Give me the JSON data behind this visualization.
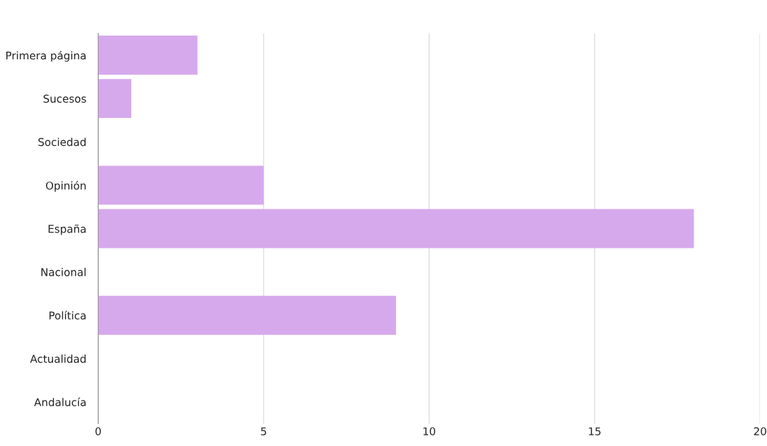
{
  "chart_data": {
    "type": "bar",
    "orientation": "horizontal",
    "categories": [
      "Primera página",
      "Sucesos",
      "Sociedad",
      "Opinión",
      "España",
      "Nacional",
      "Política",
      "Actualidad",
      "Andalucía"
    ],
    "values": [
      3,
      1,
      0,
      5,
      18,
      0,
      9,
      0,
      0
    ],
    "color": "#d6a9ec",
    "xlim": [
      0,
      20
    ],
    "xticks": [
      0,
      5,
      10,
      15,
      20
    ],
    "grid": "x"
  }
}
